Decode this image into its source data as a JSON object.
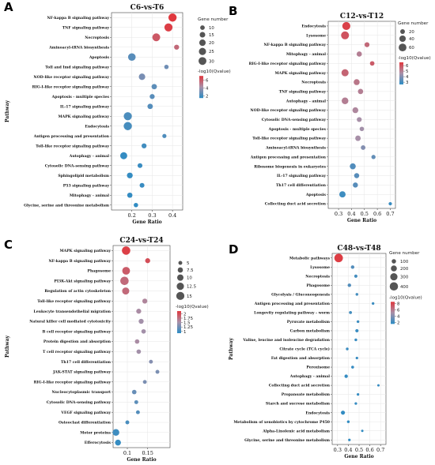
{
  "chart_data": [
    {
      "type": "scatter",
      "panel_label": "A",
      "title": "C6-vs-T6",
      "xlabel": "Gene Ratio",
      "ylabel": "Pathway",
      "xlim": [
        0.1,
        0.45
      ],
      "xticks": [
        "0.2",
        "0.3",
        "0.4"
      ],
      "xtick_values": [
        0.2,
        0.3,
        0.4
      ],
      "size_legend_title": "Gene number",
      "size_legend": [
        10,
        15,
        20,
        25,
        30
      ],
      "size_range": [
        5,
        33
      ],
      "color_legend_title": "-log10(Qvalue)",
      "color_ticks": [
        2,
        4,
        6
      ],
      "color_range": [
        1.5,
        7
      ],
      "points": [
        {
          "pathway": "NF-kappa B signaling pathway",
          "ratio": 0.4,
          "count": 33,
          "q": 7.0
        },
        {
          "pathway": "TNF signaling pathway",
          "ratio": 0.38,
          "count": 32,
          "q": 6.8
        },
        {
          "pathway": "Necroptosis",
          "ratio": 0.32,
          "count": 30,
          "q": 6.0
        },
        {
          "pathway": "Aminoacyl-tRNA biosynthesis",
          "ratio": 0.42,
          "count": 12,
          "q": 5.5
        },
        {
          "pathway": "Apoptosis",
          "ratio": 0.2,
          "count": 28,
          "q": 2.5
        },
        {
          "pathway": "Toll and Imd signaling pathway",
          "ratio": 0.37,
          "count": 9,
          "q": 3.0
        },
        {
          "pathway": "NOD-like receptor signaling pathway",
          "ratio": 0.25,
          "count": 20,
          "q": 3.2
        },
        {
          "pathway": "RIG-I-like receptor signaling pathway",
          "ratio": 0.31,
          "count": 14,
          "q": 2.6
        },
        {
          "pathway": "Apoptosis - multiple species",
          "ratio": 0.3,
          "count": 12,
          "q": 2.5
        },
        {
          "pathway": "IL-17 signaling pathway",
          "ratio": 0.29,
          "count": 14,
          "q": 2.4
        },
        {
          "pathway": "MAPK signaling pathway",
          "ratio": 0.18,
          "count": 32,
          "q": 2.2
        },
        {
          "pathway": "Endocytosis",
          "ratio": 0.18,
          "count": 33,
          "q": 2.1
        },
        {
          "pathway": "Antigen processing and presentation",
          "ratio": 0.36,
          "count": 8,
          "q": 2.3
        },
        {
          "pathway": "Toll-like receptor signaling pathway",
          "ratio": 0.26,
          "count": 12,
          "q": 2.0
        },
        {
          "pathway": "Autophagy - animal",
          "ratio": 0.16,
          "count": 24,
          "q": 1.7
        },
        {
          "pathway": "Cytosolic DNA-sensing pathway",
          "ratio": 0.24,
          "count": 11,
          "q": 1.8
        },
        {
          "pathway": "Sphingolipid metabolism",
          "ratio": 0.19,
          "count": 16,
          "q": 1.7
        },
        {
          "pathway": "P53 signaling pathway",
          "ratio": 0.25,
          "count": 11,
          "q": 1.8
        },
        {
          "pathway": "Mitophagy - animal",
          "ratio": 0.19,
          "count": 13,
          "q": 1.7
        },
        {
          "pathway": "Glycine, serine and threonine metabolism",
          "ratio": 0.22,
          "count": 9,
          "q": 1.6
        }
      ]
    },
    {
      "type": "scatter",
      "panel_label": "B",
      "title": "C12-vs-T12",
      "xlabel": "Gene Ratio",
      "ylabel": "",
      "xlim": [
        0.22,
        0.74
      ],
      "xticks": [
        "0.3",
        "0.4",
        "0.5",
        "0.6",
        "0.7"
      ],
      "xtick_values": [
        0.3,
        0.4,
        0.5,
        0.6,
        0.7
      ],
      "size_legend_title": "Gene number",
      "size_legend": [
        20,
        40,
        60
      ],
      "size_range": [
        5,
        68
      ],
      "color_legend_title": "-log10(Qvalue)",
      "color_ticks": [
        3,
        4,
        5,
        6
      ],
      "color_range": [
        2.6,
        6.6
      ],
      "points": [
        {
          "pathway": "Endocytosis",
          "ratio": 0.36,
          "count": 65,
          "q": 6.4
        },
        {
          "pathway": "Lysosome",
          "ratio": 0.35,
          "count": 63,
          "q": 6.0
        },
        {
          "pathway": "NF-kappa B signaling pathway",
          "ratio": 0.52,
          "count": 22,
          "q": 5.5
        },
        {
          "pathway": "Mitophagy - animal",
          "ratio": 0.46,
          "count": 25,
          "q": 5.0
        },
        {
          "pathway": "RIG-I-like receptor signaling pathway",
          "ratio": 0.56,
          "count": 18,
          "q": 5.8
        },
        {
          "pathway": "MAPK signaling pathway",
          "ratio": 0.35,
          "count": 50,
          "q": 5.6
        },
        {
          "pathway": "Necroptosis",
          "ratio": 0.44,
          "count": 34,
          "q": 5.2
        },
        {
          "pathway": "TNF signaling pathway",
          "ratio": 0.47,
          "count": 26,
          "q": 5.0
        },
        {
          "pathway": "Autophagy - animal",
          "ratio": 0.35,
          "count": 44,
          "q": 5.0
        },
        {
          "pathway": "NOD-like receptor signaling pathway",
          "ratio": 0.43,
          "count": 33,
          "q": 4.8
        },
        {
          "pathway": "Cytosolic DNA-sensing pathway",
          "ratio": 0.46,
          "count": 22,
          "q": 4.6
        },
        {
          "pathway": "Apoptosis - multiple species",
          "ratio": 0.48,
          "count": 17,
          "q": 4.5
        },
        {
          "pathway": "Toll-like receptor signaling pathway",
          "ratio": 0.45,
          "count": 28,
          "q": 4.6
        },
        {
          "pathway": "Aminoacyl-tRNA biosynthesis",
          "ratio": 0.49,
          "count": 19,
          "q": 4.0
        },
        {
          "pathway": "Antigen processing and presentation",
          "ratio": 0.57,
          "count": 15,
          "q": 3.5
        },
        {
          "pathway": "Ribosome biogenesis in eukaryotes",
          "ratio": 0.41,
          "count": 34,
          "q": 3.2
        },
        {
          "pathway": "IL-17 signaling pathway",
          "ratio": 0.44,
          "count": 24,
          "q": 3.3
        },
        {
          "pathway": "Th17 cell differentiation",
          "ratio": 0.43,
          "count": 24,
          "q": 3.3
        },
        {
          "pathway": "Apoptosis",
          "ratio": 0.33,
          "count": 38,
          "q": 2.9
        },
        {
          "pathway": "Collecting duct acid secretion",
          "ratio": 0.7,
          "count": 8,
          "q": 2.8
        }
      ]
    },
    {
      "type": "scatter",
      "panel_label": "C",
      "title": "C24-vs-T24",
      "xlabel": "Gene Ratio",
      "ylabel": "Pathway",
      "xlim": [
        0.065,
        0.205
      ],
      "xticks": [
        "0.1",
        "0.15"
      ],
      "xtick_values": [
        0.1,
        0.15
      ],
      "size_legend_title": "",
      "size_legend": [
        5,
        7.5,
        10,
        12.5,
        15
      ],
      "size_range": [
        3,
        16
      ],
      "color_legend_title": "-log10(Qvalue)",
      "color_ticks": [
        1,
        1.25,
        1.5,
        1.75,
        2
      ],
      "color_range": [
        0.9,
        2.15
      ],
      "points": [
        {
          "pathway": "MAPK signaling pathway",
          "ratio": 0.097,
          "count": 16,
          "q": 2.1
        },
        {
          "pathway": "NF-kappa B signaling pathway",
          "ratio": 0.15,
          "count": 7,
          "q": 2.0
        },
        {
          "pathway": "Phagosome",
          "ratio": 0.097,
          "count": 14,
          "q": 1.9
        },
        {
          "pathway": "PI3K-Akt signaling pathway",
          "ratio": 0.093,
          "count": 16,
          "q": 1.8
        },
        {
          "pathway": "Regulation of actin cytoskeleton",
          "ratio": 0.096,
          "count": 12,
          "q": 1.8
        },
        {
          "pathway": "Toll-like receptor signaling pathway",
          "ratio": 0.143,
          "count": 7,
          "q": 1.6
        },
        {
          "pathway": "Leukocyte transendothelial migration",
          "ratio": 0.128,
          "count": 7,
          "q": 1.55
        },
        {
          "pathway": "Natural killer cell mediated cytotoxicity",
          "ratio": 0.134,
          "count": 7,
          "q": 1.5
        },
        {
          "pathway": "B cell receptor signaling pathway",
          "ratio": 0.14,
          "count": 6,
          "q": 1.5
        },
        {
          "pathway": "Protein digestion and absorption",
          "ratio": 0.124,
          "count": 6,
          "q": 1.55
        },
        {
          "pathway": "T cell receptor signaling pathway",
          "ratio": 0.128,
          "count": 6,
          "q": 1.5
        },
        {
          "pathway": "Th17 cell differentiation",
          "ratio": 0.158,
          "count": 5,
          "q": 1.35
        },
        {
          "pathway": "JAK-STAT signaling pathway",
          "ratio": 0.174,
          "count": 5,
          "q": 1.3
        },
        {
          "pathway": "RIG-I-like receptor signaling pathway",
          "ratio": 0.143,
          "count": 5,
          "q": 1.3
        },
        {
          "pathway": "Nucleocytoplasmic transport",
          "ratio": 0.117,
          "count": 6,
          "q": 1.2
        },
        {
          "pathway": "Cytosolic DNA-sensing pathway",
          "ratio": 0.122,
          "count": 5,
          "q": 1.15
        },
        {
          "pathway": "VEGF signaling pathway",
          "ratio": 0.126,
          "count": 5,
          "q": 1.1
        },
        {
          "pathway": "Osteoclast differentiation",
          "ratio": 0.1,
          "count": 5,
          "q": 1.05
        },
        {
          "pathway": "Motor proteins",
          "ratio": 0.072,
          "count": 11,
          "q": 1.0
        },
        {
          "pathway": "Efferocytosis",
          "ratio": 0.077,
          "count": 9,
          "q": 0.95
        }
      ]
    },
    {
      "type": "scatter",
      "panel_label": "D",
      "title": "C48-vs-T48",
      "xlabel": "Gene Ratio",
      "ylabel": "Pathway",
      "xlim": [
        0.25,
        0.75
      ],
      "xticks": [
        "0.3",
        "0.4",
        "0.5",
        "0.6",
        "0.7"
      ],
      "xtick_values": [
        0.3,
        0.4,
        0.5,
        0.6,
        0.7
      ],
      "size_legend_title": "Gene number",
      "size_legend": [
        100,
        200,
        300,
        400
      ],
      "size_range": [
        20,
        420
      ],
      "color_legend_title": "-log10(Qvalue)",
      "color_ticks": [
        2,
        4,
        6,
        8
      ],
      "color_range": [
        1.5,
        8.5
      ],
      "points": [
        {
          "pathway": "Metabolic pathways",
          "ratio": 0.31,
          "count": 420,
          "q": 8.3
        },
        {
          "pathway": "Lysosome",
          "ratio": 0.44,
          "count": 60,
          "q": 2.6
        },
        {
          "pathway": "Necroptosis",
          "ratio": 0.47,
          "count": 50,
          "q": 2.2
        },
        {
          "pathway": "Phagosome",
          "ratio": 0.41,
          "count": 60,
          "q": 2.6
        },
        {
          "pathway": "Glycolysis / Gluconeogenesis",
          "ratio": 0.48,
          "count": 30,
          "q": 2.2
        },
        {
          "pathway": "Antigen processing and presentation",
          "ratio": 0.63,
          "count": 28,
          "q": 2.0
        },
        {
          "pathway": "Longevity regulating pathway - worm",
          "ratio": 0.42,
          "count": 40,
          "q": 2.2
        },
        {
          "pathway": "Pyruvate metabolism",
          "ratio": 0.49,
          "count": 30,
          "q": 2.0
        },
        {
          "pathway": "Carbon metabolism",
          "ratio": 0.48,
          "count": 50,
          "q": 1.9
        },
        {
          "pathway": "Valine, leucine and isoleucine degradation",
          "ratio": 0.47,
          "count": 30,
          "q": 1.9
        },
        {
          "pathway": "Citrate cycle (TCA cycle)",
          "ratio": 0.39,
          "count": 30,
          "q": 1.9
        },
        {
          "pathway": "Fat digestion and absorption",
          "ratio": 0.48,
          "count": 25,
          "q": 1.9
        },
        {
          "pathway": "Peroxisome",
          "ratio": 0.44,
          "count": 35,
          "q": 1.8
        },
        {
          "pathway": "Autophagy - animal",
          "ratio": 0.38,
          "count": 55,
          "q": 1.8
        },
        {
          "pathway": "Collecting duct acid secretion",
          "ratio": 0.68,
          "count": 20,
          "q": 1.8
        },
        {
          "pathway": "Propanoate metabolism",
          "ratio": 0.49,
          "count": 25,
          "q": 1.8
        },
        {
          "pathway": "Starch and sucrose metabolism",
          "ratio": 0.47,
          "count": 25,
          "q": 1.8
        },
        {
          "pathway": "Endocytosis",
          "ratio": 0.35,
          "count": 85,
          "q": 1.7
        },
        {
          "pathway": "Metabolism of xenobiotics by cytochrome P450",
          "ratio": 0.4,
          "count": 30,
          "q": 1.7
        },
        {
          "pathway": "Alpha-Linolenic acid metabolism",
          "ratio": 0.53,
          "count": 18,
          "q": 1.7
        },
        {
          "pathway": "Glycine, serine and threonine metabolism",
          "ratio": 0.41,
          "count": 25,
          "q": 1.7
        }
      ]
    }
  ]
}
